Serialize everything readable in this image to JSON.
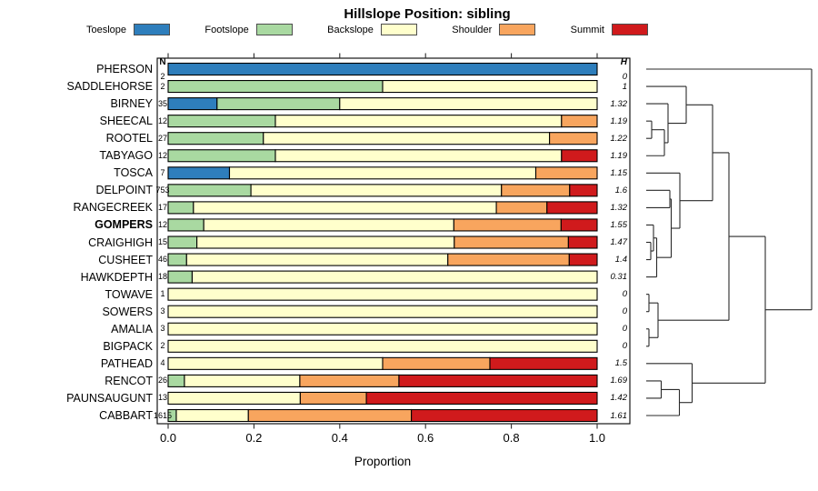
{
  "chart_data": {
    "type": "bar",
    "subtype": "horizontal-stacked-proportion-with-dendrogram",
    "title": "Hillslope Position: sibling",
    "xlabel": "Proportion",
    "xlim": [
      0.0,
      1.0
    ],
    "x_ticks": [
      "0.0",
      "0.2",
      "0.4",
      "0.6",
      "0.8",
      "1.0"
    ],
    "x_tick_values": [
      0.0,
      0.2,
      0.4,
      0.6,
      0.8,
      1.0
    ],
    "n_header": "N",
    "h_header": "H",
    "categories": [
      "Toeslope",
      "Footslope",
      "Backslope",
      "Shoulder",
      "Summit"
    ],
    "colors": [
      "#2E7EBC",
      "#A9D9A1",
      "#FFFFCC",
      "#F8A55E",
      "#D01A1C"
    ],
    "rows": [
      {
        "label": "PHERSON",
        "bold": false,
        "n": "2",
        "h": "0",
        "values": [
          1,
          0,
          0,
          0,
          0
        ]
      },
      {
        "label": "SADDLEHORSE",
        "bold": false,
        "n": "2",
        "h": "1",
        "values": [
          0,
          0.5,
          0.5,
          0,
          0
        ]
      },
      {
        "label": "BIRNEY",
        "bold": false,
        "n": "35",
        "h": "1.32",
        "values": [
          0.114,
          0.286,
          0.6,
          0,
          0
        ]
      },
      {
        "label": "SHEECAL",
        "bold": false,
        "n": "12",
        "h": "1.19",
        "values": [
          0,
          0.25,
          0.667,
          0.083,
          0
        ]
      },
      {
        "label": "ROOTEL",
        "bold": false,
        "n": "27",
        "h": "1.22",
        "values": [
          0,
          0.222,
          0.667,
          0.111,
          0
        ]
      },
      {
        "label": "TABYAGO",
        "bold": false,
        "n": "12",
        "h": "1.19",
        "values": [
          0,
          0.25,
          0.667,
          0,
          0.083
        ]
      },
      {
        "label": "TOSCA",
        "bold": false,
        "n": "7",
        "h": "1.15",
        "values": [
          0.143,
          0,
          0.714,
          0.143,
          0
        ]
      },
      {
        "label": "DELPOINT",
        "bold": false,
        "n": "753",
        "h": "1.6",
        "values": [
          0,
          0.193,
          0.584,
          0.159,
          0.064
        ]
      },
      {
        "label": "RANGECREEK",
        "bold": false,
        "n": "17",
        "h": "1.32",
        "values": [
          0,
          0.059,
          0.706,
          0.118,
          0.117
        ]
      },
      {
        "label": "GOMPERS",
        "bold": true,
        "n": "12",
        "h": "1.55",
        "values": [
          0,
          0.083,
          0.583,
          0.25,
          0.084
        ]
      },
      {
        "label": "CRAIGHIGH",
        "bold": false,
        "n": "15",
        "h": "1.47",
        "values": [
          0,
          0.067,
          0.6,
          0.266,
          0.067
        ]
      },
      {
        "label": "CUSHEET",
        "bold": false,
        "n": "46",
        "h": "1.4",
        "values": [
          0,
          0.043,
          0.609,
          0.283,
          0.065
        ]
      },
      {
        "label": "HAWKDEPTH",
        "bold": false,
        "n": "18",
        "h": "0.31",
        "values": [
          0,
          0.056,
          0.944,
          0,
          0
        ]
      },
      {
        "label": "TOWAVE",
        "bold": false,
        "n": "1",
        "h": "0",
        "values": [
          0,
          0,
          1,
          0,
          0
        ]
      },
      {
        "label": "SOWERS",
        "bold": false,
        "n": "3",
        "h": "0",
        "values": [
          0,
          0,
          1,
          0,
          0
        ]
      },
      {
        "label": "AMALIA",
        "bold": false,
        "n": "3",
        "h": "0",
        "values": [
          0,
          0,
          1,
          0,
          0
        ]
      },
      {
        "label": "BIGPACK",
        "bold": false,
        "n": "2",
        "h": "0",
        "values": [
          0,
          0,
          1,
          0,
          0
        ]
      },
      {
        "label": "PATHEAD",
        "bold": false,
        "n": "4",
        "h": "1.5",
        "values": [
          0,
          0,
          0.5,
          0.25,
          0.25
        ]
      },
      {
        "label": "RENCOT",
        "bold": false,
        "n": "26",
        "h": "1.69",
        "values": [
          0,
          0.038,
          0.269,
          0.231,
          0.462
        ]
      },
      {
        "label": "PAUNSAUGUNT",
        "bold": false,
        "n": "13",
        "h": "1.42",
        "values": [
          0,
          0,
          0.308,
          0.154,
          0.538
        ]
      },
      {
        "label": "CABBART",
        "bold": false,
        "n": "1615",
        "h": "1.61",
        "values": [
          0,
          0.019,
          0.168,
          0.38,
          0.433
        ]
      }
    ],
    "dendrogram": {
      "leaf_x": 711,
      "merges": [
        {
          "id": "M1",
          "a": "L4",
          "b": "L5",
          "x": 717
        },
        {
          "id": "M2",
          "a": "M1",
          "b": "L6",
          "x": 731
        },
        {
          "id": "M3",
          "a": "L3",
          "b": "M2",
          "x": 735
        },
        {
          "id": "M4",
          "a": "L2",
          "b": "M3",
          "x": 755
        },
        {
          "id": "M5",
          "a": "L8",
          "b": "L9",
          "x": 737
        },
        {
          "id": "M6",
          "a": "L11",
          "b": "L12",
          "x": 716
        },
        {
          "id": "M7",
          "a": "L10",
          "b": "M6",
          "x": 719
        },
        {
          "id": "M8",
          "a": "M7",
          "b": "L13",
          "x": 722.5
        },
        {
          "id": "M9",
          "a": "M5",
          "b": "M8",
          "x": 738.5
        },
        {
          "id": "M10",
          "a": "L7",
          "b": "M9",
          "x": 748
        },
        {
          "id": "M11",
          "a": "M4",
          "b": "M10",
          "x": 784
        },
        {
          "id": "M12",
          "a": "L14",
          "b": "L15",
          "x": 714
        },
        {
          "id": "M13",
          "a": "L16",
          "b": "L17",
          "x": 714
        },
        {
          "id": "M14",
          "a": "M12",
          "b": "M13",
          "x": 724
        },
        {
          "id": "M15",
          "a": "M11",
          "b": "M14",
          "x": 802
        },
        {
          "id": "M16",
          "a": "L19",
          "b": "L20",
          "x": 727.5
        },
        {
          "id": "M17",
          "a": "M16",
          "b": "L21",
          "x": 747.5
        },
        {
          "id": "M18",
          "a": "L18",
          "b": "M17",
          "x": 761.5
        },
        {
          "id": "M19",
          "a": "M15",
          "b": "M18",
          "x": 842
        },
        {
          "id": "M20",
          "a": "L1",
          "b": "M19",
          "x": 893
        }
      ]
    }
  }
}
